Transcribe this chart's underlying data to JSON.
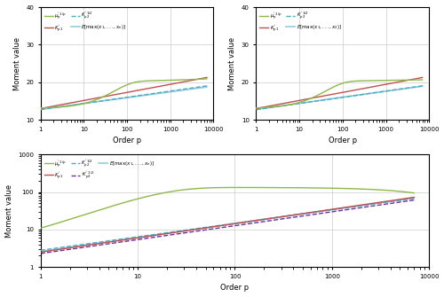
{
  "upper_ylim": [
    10,
    40
  ],
  "upper_yticks": [
    10,
    20,
    30,
    40
  ],
  "lower_ylim": [
    1,
    1000
  ],
  "lower_yticks": [
    1,
    10,
    100,
    1000
  ],
  "xlim": [
    1,
    10000
  ],
  "xlabel": "Order p",
  "ylabel": "Moment value",
  "color_green": "#8db84a",
  "color_red": "#c0504d",
  "color_teal_dash": "#4bacc6",
  "color_lightblue": "#92cddc",
  "color_purple": "#7030a0",
  "lw": 1.0
}
